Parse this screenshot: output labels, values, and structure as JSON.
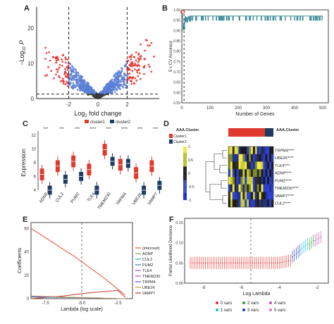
{
  "panels": {
    "A": {
      "label": "A",
      "ylabel": "−Log",
      "ylabel_sub": "10",
      "ylabel_end": " P",
      "xlabel": "Log",
      "xlabel_sub": "2",
      "xlabel_end": " fold change",
      "xticks": [
        "-2",
        "0",
        "2"
      ],
      "yticks": [
        "0",
        "10",
        "20"
      ],
      "colors": {
        "up": "#e8302c",
        "down": "#e8302c",
        "mid": "#5a7fd6",
        "ns": "#3a3a3a"
      }
    },
    "B": {
      "label": "B",
      "ylabel": "5 x CV Accuracy",
      "xlabel": "Number of Genes",
      "xticks": [
        "0",
        "100",
        "200",
        "300",
        "400",
        "500"
      ],
      "yticks": [
        "0.55",
        "0.60",
        "0.65",
        "0.70",
        "0.75",
        "0.80",
        "0.85",
        "0.90",
        "0.95",
        "1.00"
      ]
    },
    "C": {
      "label": "C",
      "ylabel": "Expression",
      "legend": [
        {
          "name": "cluster1",
          "color": "#e0392e"
        },
        {
          "name": "cluster2",
          "color": "#1f3a63"
        }
      ],
      "genes": [
        "ADNP",
        "CUL2",
        "PUM2",
        "TLE4",
        "TMEM230",
        "TRPM4",
        "UBE2K",
        "VAMP7"
      ],
      "sig": [
        "***",
        "***",
        "***",
        "****",
        "***",
        "****",
        "***",
        "***"
      ],
      "yticks": [
        "4",
        "6",
        "8",
        "10",
        "12"
      ]
    },
    "D": {
      "label": "D",
      "legend_title": "AAA.Cluster",
      "top_title": "AAA.Cluster",
      "legend_items": [
        "Cluster1",
        "Cluster2"
      ],
      "genes": [
        "TRPM4****",
        "UBE2K****",
        "TLE4****",
        "ADNP****",
        "PUM2****",
        "TMEM230****",
        "VAMP7****",
        "CUL2****"
      ],
      "scale": [
        "1",
        "0.5",
        "0",
        "-0.5",
        "-1"
      ]
    },
    "E": {
      "label": "E",
      "ylabel": "Coefficients",
      "xlabel": "Lambda (log scale)",
      "xticks": [
        "-7.5",
        "-5.0",
        "-2.5"
      ],
      "yticks": [
        "0",
        "20",
        "40",
        "60"
      ],
      "legend": [
        {
          "name": "(intercept)",
          "color": "#e8502e"
        },
        {
          "name": "ADNP",
          "color": "#8aa35a"
        },
        {
          "name": "CUL2",
          "color": "#2fb3a0"
        },
        {
          "name": "PUM2",
          "color": "#3a78c6"
        },
        {
          "name": "TLE4",
          "color": "#8b57c2"
        },
        {
          "name": "TMEM230",
          "color": "#c24fb5"
        },
        {
          "name": "TRPM4",
          "color": "#5b5bd6"
        },
        {
          "name": "UBE2K",
          "color": "#d4a020"
        },
        {
          "name": "VAMP7",
          "color": "#c0392b"
        }
      ]
    },
    "F": {
      "label": "F",
      "ylabel": "Partial Likelihood Deviance",
      "xlabel": "Log Lambda",
      "xticks": [
        "-8",
        "-6",
        "-4",
        "-2"
      ],
      "yticks": [
        "0.00",
        "0.05",
        "0.10",
        "0.15"
      ],
      "legend": [
        {
          "name": "0 vars",
          "color": "#e8302c"
        },
        {
          "name": "2 vars",
          "color": "#2ca02c"
        },
        {
          "name": "4 vars",
          "color": "#c04fb5"
        },
        {
          "name": "1 vars",
          "color": "#17becf"
        },
        {
          "name": "3 vars",
          "color": "#1f3fbf"
        },
        {
          "name": "5 vars",
          "color": "#e377c2"
        }
      ]
    }
  },
  "chart_data": [
    {
      "type": "scatter",
      "panel": "A",
      "xlabel": "Log2 fold change",
      "ylabel": "-Log10 P",
      "xlim": [
        -4.2,
        4.2
      ],
      "ylim": [
        0,
        26
      ],
      "thresholds": {
        "fc": [
          -2,
          2
        ],
        "p": 1.3
      }
    },
    {
      "type": "line",
      "panel": "B",
      "xlabel": "Number of Genes",
      "ylabel": "5 x CV Accuracy",
      "xlim": [
        0,
        520
      ],
      "ylim": [
        0.55,
        1.0
      ],
      "x": [
        1,
        3,
        5,
        8,
        10,
        15,
        20,
        30,
        40,
        60,
        80,
        100,
        150,
        200,
        250,
        300,
        350,
        400,
        450,
        500
      ],
      "values": [
        0.99,
        0.97,
        0.95,
        0.91,
        0.93,
        0.95,
        0.96,
        0.97,
        0.95,
        0.97,
        0.97,
        0.97,
        0.96,
        0.97,
        0.97,
        0.97,
        0.96,
        0.97,
        0.97,
        0.97
      ]
    },
    {
      "type": "box",
      "panel": "C",
      "categories": [
        "ADNP",
        "CUL2",
        "PUM2",
        "TLE4",
        "TMEM230",
        "TRPM4",
        "UBE2K",
        "VAMP7"
      ],
      "series": [
        {
          "name": "cluster1",
          "medians": [
            6.3,
            7.5,
            8.2,
            7.0,
            9.9,
            7.7,
            6.5,
            7.5
          ]
        },
        {
          "name": "cluster2",
          "medians": [
            4.0,
            5.6,
            6.0,
            4.0,
            8.2,
            7.9,
            4.0,
            4.7
          ]
        }
      ],
      "ylim": [
        4,
        12
      ]
    },
    {
      "type": "line",
      "panel": "E",
      "xlabel": "Lambda (log scale)",
      "ylabel": "Coefficients",
      "xlim": [
        -8.5,
        -1.5
      ],
      "ylim": [
        0,
        65
      ],
      "series": [
        {
          "name": "(intercept)",
          "x": [
            -8.5,
            -7.5,
            -6.5,
            -5.5,
            -4.5,
            -3.5,
            -2.5,
            -2.0
          ],
          "values": [
            60,
            52,
            44,
            36,
            27,
            18,
            8,
            3
          ]
        },
        {
          "name": "VAMP7",
          "x": [
            -8.5,
            -6.5,
            -4.5,
            -2.5,
            -2.0
          ],
          "values": [
            -1,
            2,
            5,
            7,
            1
          ]
        }
      ],
      "vline": -5.0
    },
    {
      "type": "scatter",
      "panel": "F",
      "xlabel": "Log Lambda",
      "ylabel": "Partial Likelihood Deviance",
      "xlim": [
        -9,
        -1.4
      ],
      "ylim": [
        0,
        0.16
      ],
      "x": [
        -8.5,
        -8.0,
        -7.5,
        -7.0,
        -6.5,
        -6.0,
        -5.5,
        -5.0,
        -4.5,
        -4.0,
        -3.5,
        -3.2,
        -3.0,
        -2.8,
        -2.6,
        -2.4,
        -2.2,
        -2.0,
        -1.8
      ],
      "values": [
        0.05,
        0.05,
        0.05,
        0.05,
        0.05,
        0.05,
        0.05,
        0.05,
        0.05,
        0.055,
        0.058,
        0.06,
        0.07,
        0.075,
        0.08,
        0.085,
        0.095,
        0.1,
        0.105
      ],
      "vline": -5.5
    }
  ]
}
